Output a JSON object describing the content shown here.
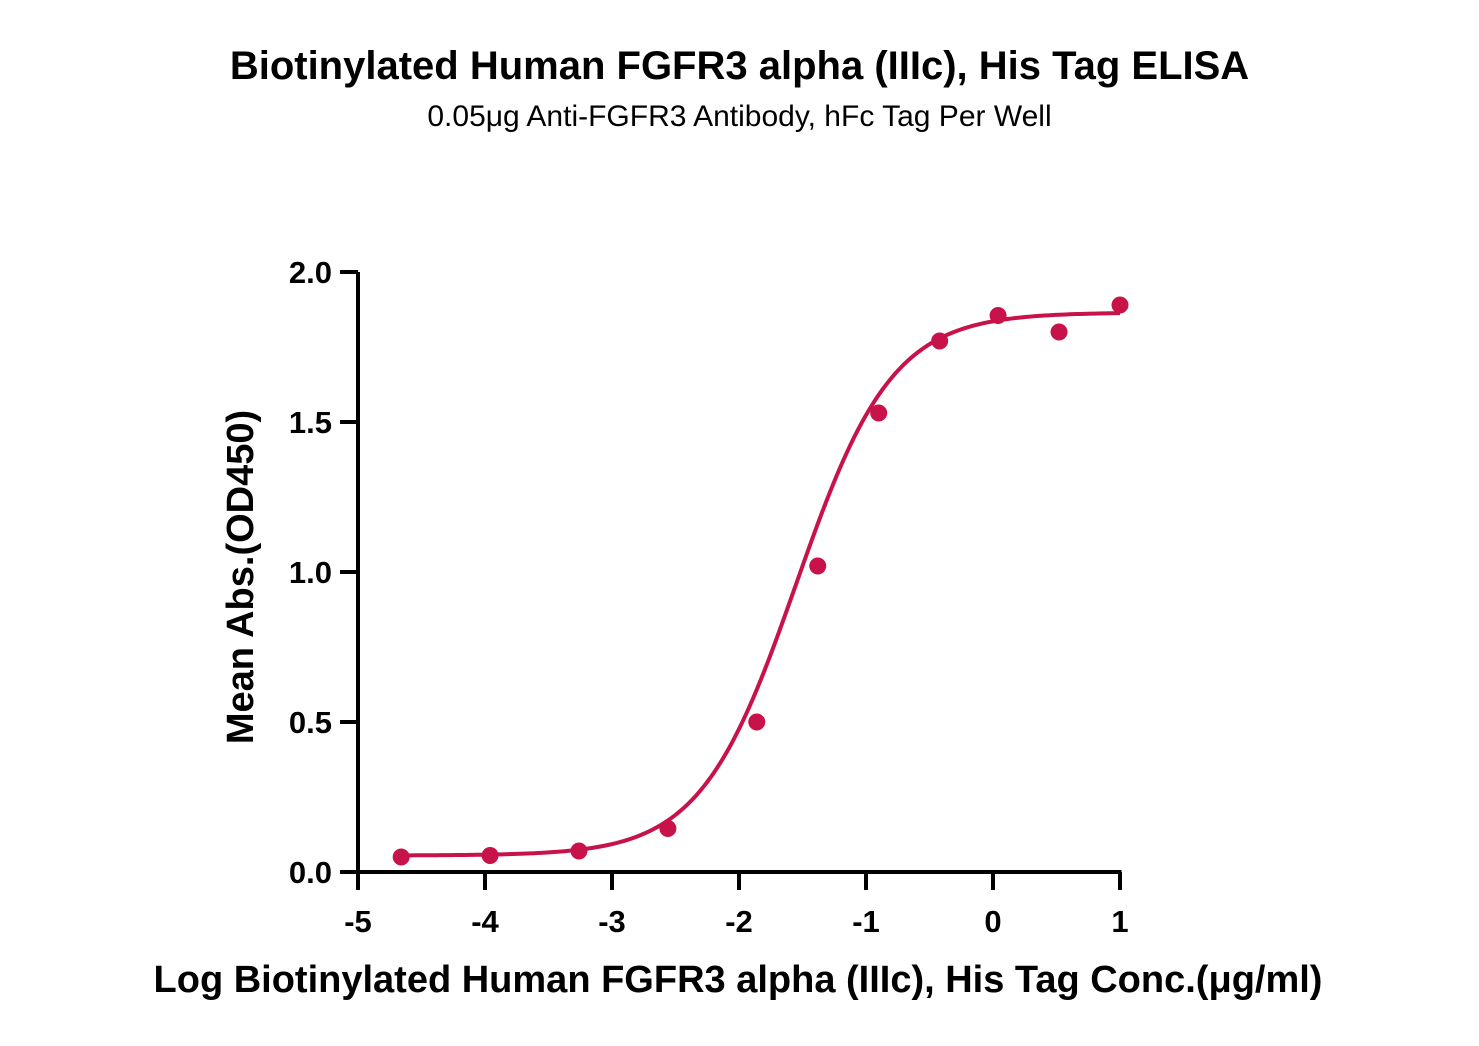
{
  "title": "Biotinylated Human FGFR3 alpha (IIIc), His Tag ELISA",
  "subtitle": "0.05μg  Anti-FGFR3 Antibody, hFc Tag Per Well",
  "colors": {
    "series": "#c8124a",
    "axis": "#000000"
  },
  "chart_data": {
    "type": "scatter",
    "title": "Biotinylated Human FGFR3 alpha (IIIc), His Tag ELISA",
    "subtitle": "0.05μg  Anti-FGFR3 Antibody, hFc Tag Per Well",
    "xlabel": "Log Biotinylated Human FGFR3 alpha (IIIc), His Tag Conc.(μg/ml)",
    "ylabel": "Mean Abs.(OD450)",
    "xlim": [
      -5,
      1
    ],
    "ylim": [
      0,
      2.0
    ],
    "xticks": [
      -5,
      -4,
      -3,
      -2,
      -1,
      0,
      1
    ],
    "xtick_labels": [
      "-5",
      "-4",
      "-3",
      "-2",
      "-1",
      "0",
      "1"
    ],
    "yticks": [
      0,
      0.5,
      1.0,
      1.5,
      2.0
    ],
    "ytick_labels": [
      "0.0",
      "0.5",
      "1.0",
      "1.5",
      "2.0"
    ],
    "grid": false,
    "series": [
      {
        "x": [
          -4.66,
          -3.96,
          -3.26,
          -2.56,
          -1.86,
          -1.38,
          -0.9,
          -0.42,
          0.04,
          0.52,
          1.0
        ],
        "y": [
          0.05,
          0.055,
          0.07,
          0.145,
          0.5,
          1.02,
          1.53,
          1.77,
          1.855,
          1.8,
          1.89
        ],
        "fit": "4PL",
        "fit_params": {
          "bottom": 0.055,
          "top": 1.865,
          "logEC50": -1.55,
          "hillslope": 1.15
        }
      }
    ]
  }
}
